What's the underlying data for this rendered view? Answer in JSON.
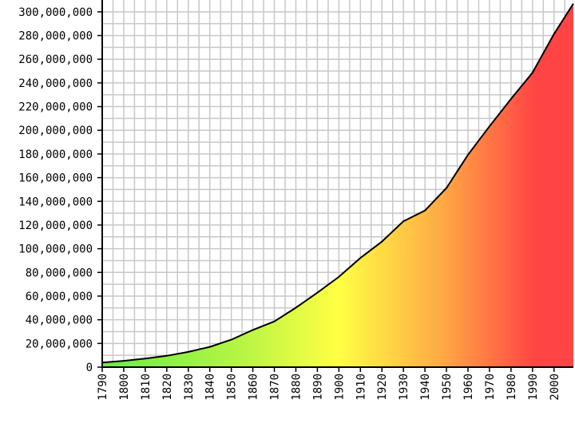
{
  "chart_data": {
    "type": "area",
    "title": "",
    "xlabel": "",
    "ylabel": "",
    "xlim": [
      1790,
      2009
    ],
    "ylim": [
      0,
      310000000
    ],
    "grid": true,
    "x_ticks": [
      "1790",
      "1800",
      "1810",
      "1820",
      "1830",
      "1840",
      "1850",
      "1860",
      "1870",
      "1880",
      "1890",
      "1900",
      "1910",
      "1920",
      "1930",
      "1940",
      "1950",
      "1960",
      "1970",
      "1980",
      "1990",
      "2000"
    ],
    "y_ticks": [
      "0",
      "20,000,000",
      "40,000,000",
      "60,000,000",
      "80,000,000",
      "100,000,000",
      "120,000,000",
      "140,000,000",
      "160,000,000",
      "180,000,000",
      "200,000,000",
      "220,000,000",
      "240,000,000",
      "260,000,000",
      "280,000,000",
      "300,000,000"
    ],
    "series": [
      {
        "x": [
          1790,
          1800,
          1810,
          1820,
          1830,
          1840,
          1850,
          1860,
          1870,
          1880,
          1890,
          1900,
          1910,
          1920,
          1930,
          1940,
          1950,
          1960,
          1970,
          1980,
          1990,
          2000,
          2009
        ],
        "values": [
          3900000,
          5300000,
          7200000,
          9600000,
          12900000,
          17100000,
          23200000,
          31400000,
          38600000,
          50200000,
          62900000,
          76200000,
          92200000,
          106000000,
          123200000,
          132200000,
          151300000,
          179300000,
          203300000,
          226500000,
          248700000,
          281400000,
          307000000
        ]
      }
    ],
    "colors": {
      "gradient_start": "#66ee44",
      "gradient_mid": "#ffff44",
      "gradient_orange": "#ffaa44",
      "gradient_end": "#ff4444",
      "line": "#000000",
      "grid": "#c8c8c8",
      "axis": "#000000"
    }
  }
}
